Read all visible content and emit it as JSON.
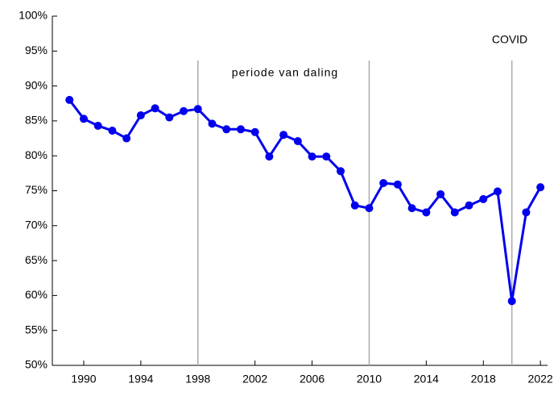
{
  "chart_data": {
    "type": "line",
    "x": [
      1989,
      1990,
      1991,
      1992,
      1993,
      1994,
      1995,
      1996,
      1997,
      1998,
      1999,
      2000,
      2001,
      2002,
      2003,
      2004,
      2005,
      2006,
      2007,
      2008,
      2009,
      2010,
      2011,
      2012,
      2013,
      2014,
      2015,
      2016,
      2017,
      2018,
      2019,
      2020,
      2021,
      2022
    ],
    "series": [
      {
        "color": "#0000ee",
        "values": [
          88.0,
          85.3,
          84.3,
          83.6,
          82.5,
          85.8,
          86.8,
          85.5,
          86.4,
          86.7,
          84.6,
          83.8,
          83.8,
          83.4,
          79.9,
          83.0,
          82.1,
          79.9,
          79.9,
          77.8,
          72.9,
          72.5,
          76.1,
          75.9,
          72.5,
          71.9,
          74.5,
          71.9,
          72.9,
          73.8,
          74.9,
          59.2,
          71.9,
          75.5
        ]
      }
    ],
    "xlim": [
      1987.8,
      2022.5
    ],
    "xticks": [
      1990,
      1994,
      1998,
      2002,
      2006,
      2010,
      2014,
      2018,
      2022
    ],
    "ylim": [
      50,
      100
    ],
    "yticks": [
      {
        "value": 50,
        "label": "50%"
      },
      {
        "value": 55,
        "label": "55%"
      },
      {
        "value": 60,
        "label": "60%"
      },
      {
        "value": 65,
        "label": "65%"
      },
      {
        "value": 70,
        "label": "70%"
      },
      {
        "value": 75,
        "label": "75%"
      },
      {
        "value": 80,
        "label": "80%"
      },
      {
        "value": 85,
        "label": "85%"
      },
      {
        "value": 90,
        "label": "90%"
      },
      {
        "value": 95,
        "label": "95%"
      },
      {
        "value": 100,
        "label": "100%"
      }
    ],
    "vlines": [
      1998,
      2010,
      2020
    ],
    "annotations": [
      "periode van daling",
      "COVID"
    ]
  }
}
